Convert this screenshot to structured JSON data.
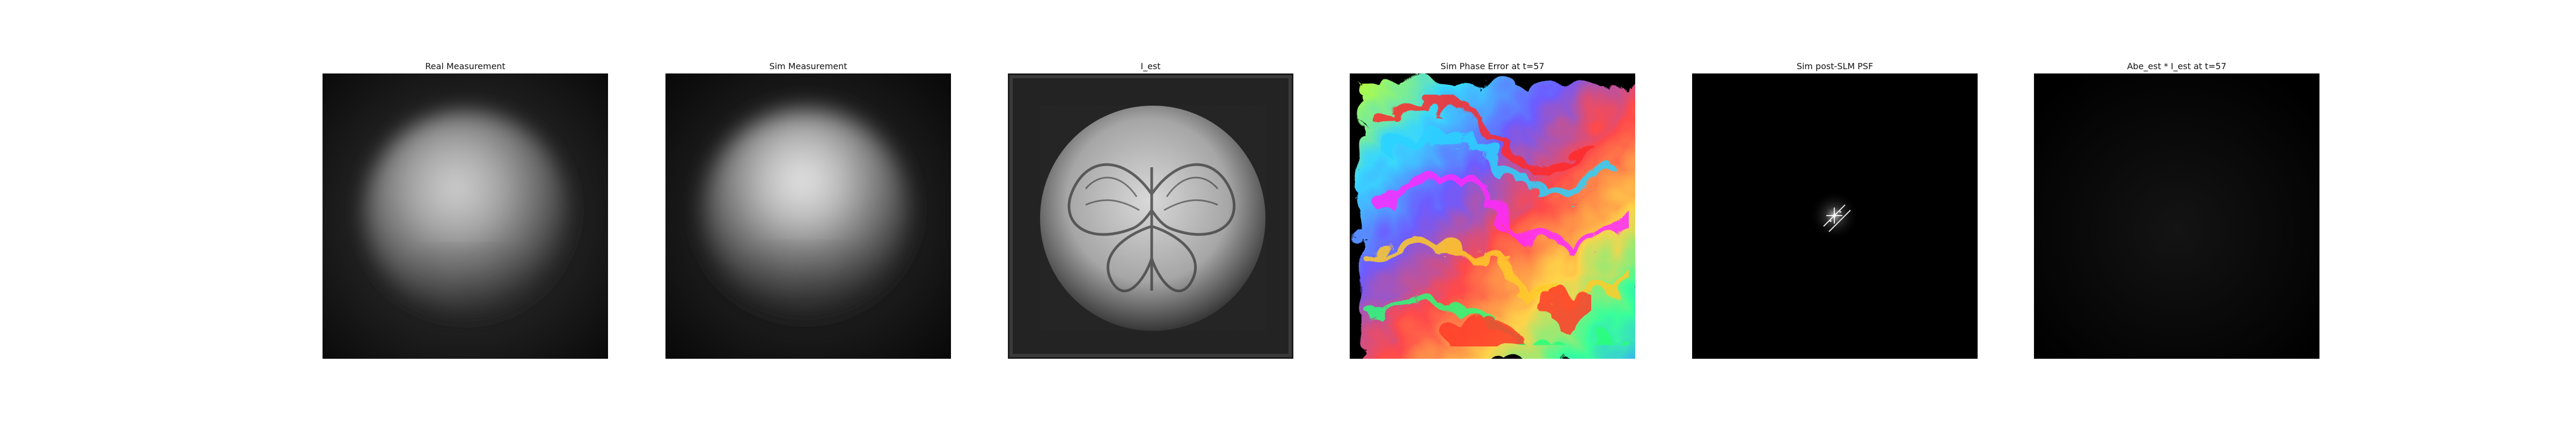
{
  "figure": {
    "panels": [
      {
        "title": "Real Measurement"
      },
      {
        "title": "Sim Measurement"
      },
      {
        "title": "I_est"
      },
      {
        "title": "Sim Phase Error at t=57"
      },
      {
        "title": "Sim post-SLM PSF"
      },
      {
        "title": "Abe_est * I_est at t=57"
      }
    ]
  },
  "colors": {
    "background": "#ffffff",
    "title_text": "#111111",
    "image_background": "#000000"
  },
  "icons": []
}
